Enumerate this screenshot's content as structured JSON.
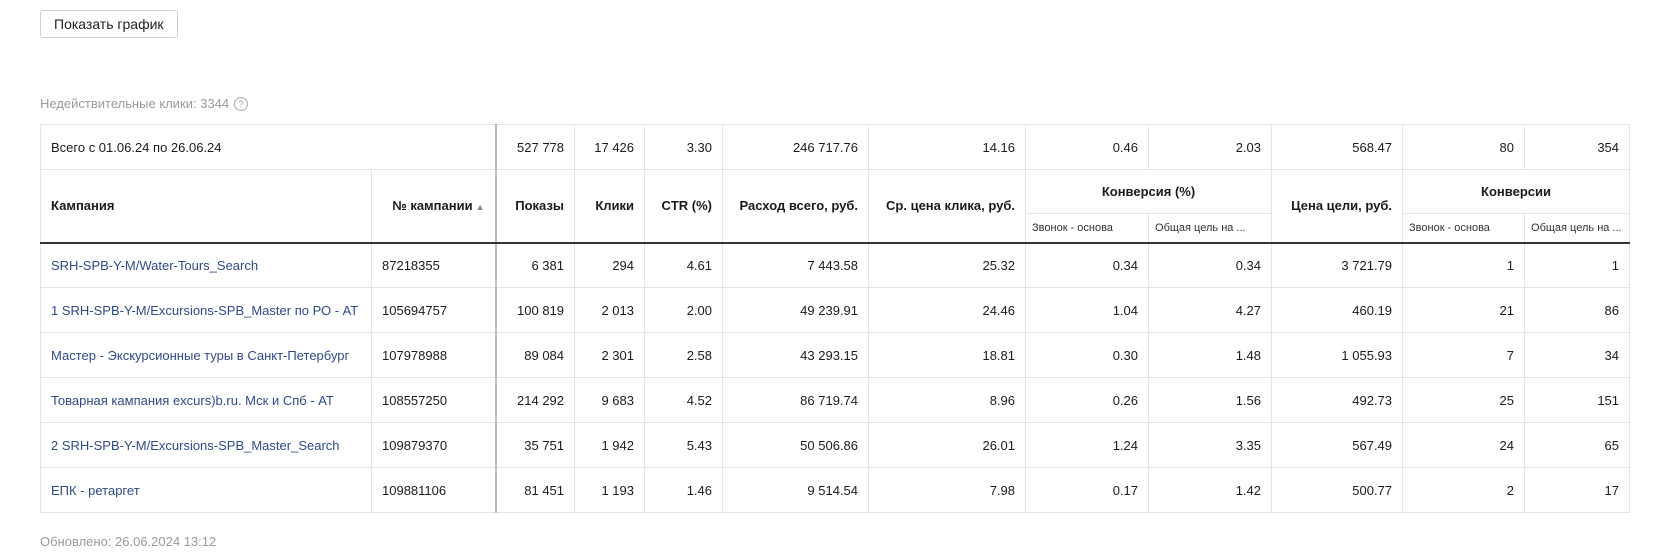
{
  "toolbar": {
    "show_chart_label": "Показать график"
  },
  "invalid_clicks": {
    "text": "Недействительные клики: 3344",
    "help": "?"
  },
  "totals": {
    "label": "Всего с 01.06.24 по 26.06.24",
    "impressions": "527 778",
    "clicks": "17 426",
    "ctr": "3.30",
    "cost": "246 717.76",
    "avg_cpc": "14.16",
    "conv_call": "0.46",
    "conv_total": "2.03",
    "goal_cost": "568.47",
    "cv_call": "80",
    "cv_total": "354"
  },
  "headers": {
    "campaign": "Кампания",
    "campaign_id": "№ кампании",
    "sort_indicator": "▲",
    "impressions": "Показы",
    "clicks": "Клики",
    "ctr": "CTR (%)",
    "cost": "Расход всего, руб.",
    "avg_cpc": "Ср. цена клика, руб.",
    "conversion_pct": "Конверсия (%)",
    "goal_cost": "Цена цели, руб.",
    "conversions": "Конверсии",
    "sub_call": "Звонок - основа",
    "sub_total": "Общая цель на ...",
    "sub_call2": "Звонок - основа",
    "sub_total2": "Общая цель на ..."
  },
  "rows": [
    {
      "name": "SRH-SPB-Y-M/Water-Tours_Search",
      "id": "87218355",
      "impressions": "6 381",
      "clicks": "294",
      "ctr": "4.61",
      "cost": "7 443.58",
      "avg_cpc": "25.32",
      "conv_call": "0.34",
      "conv_total": "0.34",
      "goal_cost": "3 721.79",
      "cv_call": "1",
      "cv_total": "1"
    },
    {
      "name": "1 SRH-SPB-Y-M/Excursions-SPB_Master по РО - АТ",
      "id": "105694757",
      "impressions": "100 819",
      "clicks": "2 013",
      "ctr": "2.00",
      "cost": "49 239.91",
      "avg_cpc": "24.46",
      "conv_call": "1.04",
      "conv_total": "4.27",
      "goal_cost": "460.19",
      "cv_call": "21",
      "cv_total": "86"
    },
    {
      "name": "Мастер - Экскурсионные туры в Санкт-Петербург",
      "id": "107978988",
      "impressions": "89 084",
      "clicks": "2 301",
      "ctr": "2.58",
      "cost": "43 293.15",
      "avg_cpc": "18.81",
      "conv_call": "0.30",
      "conv_total": "1.48",
      "goal_cost": "1 055.93",
      "cv_call": "7",
      "cv_total": "34"
    },
    {
      "name": "Товарная кампания excurs)b.ru. Мск и Спб - АТ",
      "id": "108557250",
      "impressions": "214 292",
      "clicks": "9 683",
      "ctr": "4.52",
      "cost": "86 719.74",
      "avg_cpc": "8.96",
      "conv_call": "0.26",
      "conv_total": "1.56",
      "goal_cost": "492.73",
      "cv_call": "25",
      "cv_total": "151"
    },
    {
      "name": "2 SRH-SPB-Y-M/Excursions-SPB_Master_Search",
      "id": "109879370",
      "impressions": "35 751",
      "clicks": "1 942",
      "ctr": "5.43",
      "cost": "50 506.86",
      "avg_cpc": "26.01",
      "conv_call": "1.24",
      "conv_total": "3.35",
      "goal_cost": "567.49",
      "cv_call": "24",
      "cv_total": "65"
    },
    {
      "name": "ЕПК - ретаргет",
      "id": "109881106",
      "impressions": "81 451",
      "clicks": "1 193",
      "ctr": "1.46",
      "cost": "9 514.54",
      "avg_cpc": "7.98",
      "conv_call": "0.17",
      "conv_total": "1.42",
      "goal_cost": "500.77",
      "cv_call": "2",
      "cv_total": "17"
    }
  ],
  "footer": {
    "updated": "Обновлено: 26.06.2024 13:12"
  },
  "colors": {
    "link": "#2f4a8a",
    "muted": "#9a9a9a",
    "border": "#e4e4e4"
  }
}
